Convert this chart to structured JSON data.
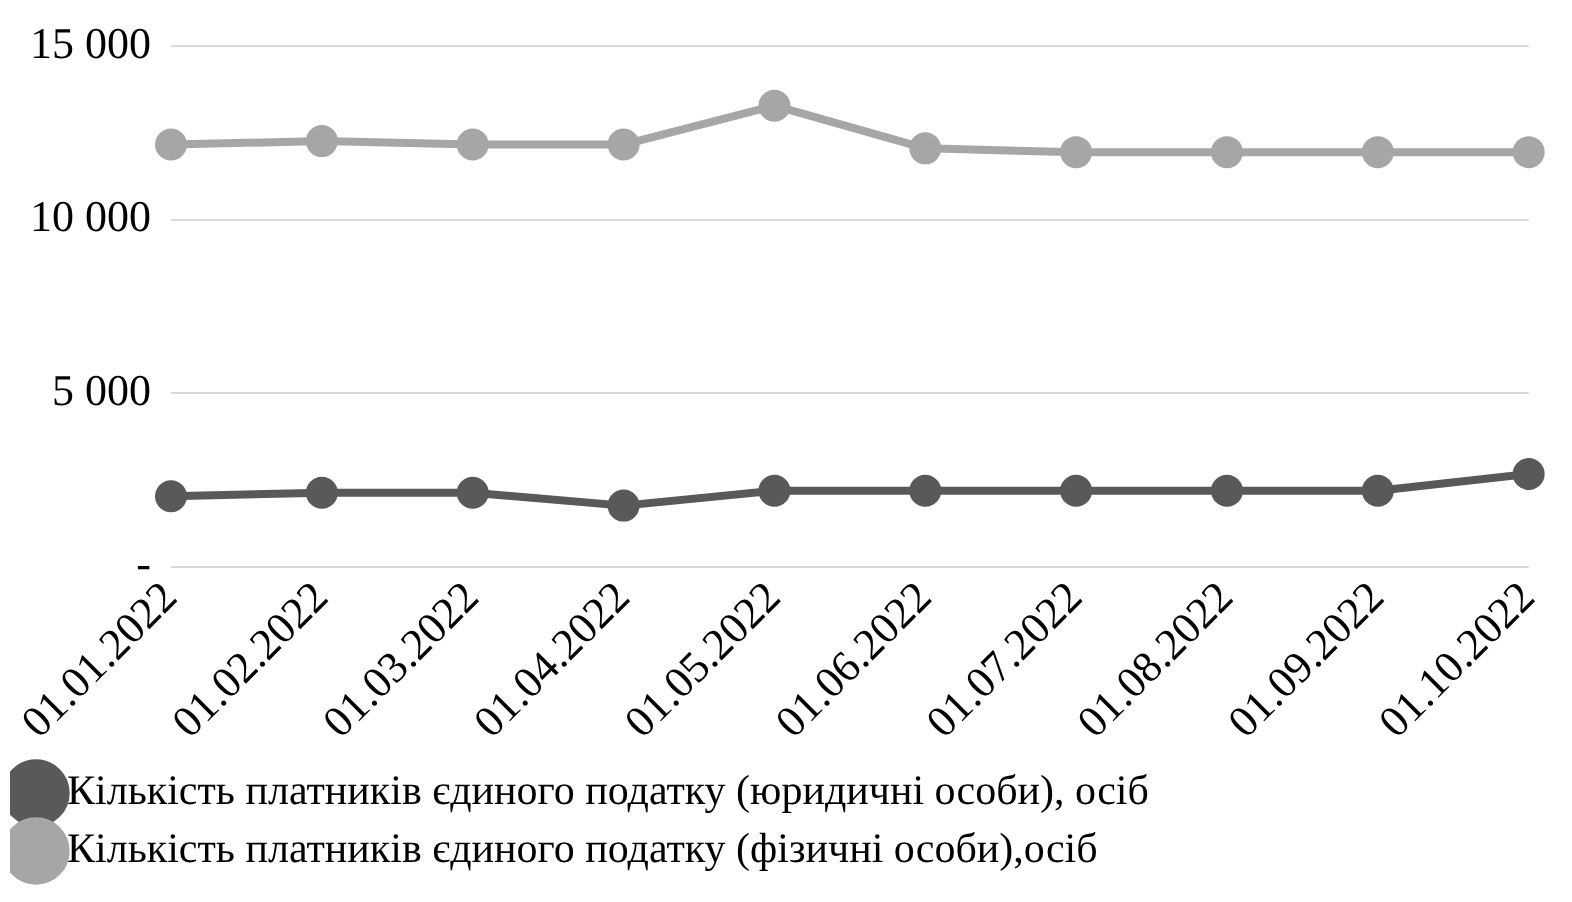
{
  "chart_data": {
    "type": "line",
    "categories": [
      "01.01.2022",
      "01.02.2022",
      "01.03.2022",
      "01.04.2022",
      "01.05.2022",
      "01.06.2022",
      "01.07.2022",
      "01.08.2022",
      "01.09.2022",
      "01.10.2022"
    ],
    "series": [
      {
        "name": "Кількість платників єдиного податку (юридичні особи), осіб",
        "color": "#595959",
        "values": [
          2030,
          2130,
          2130,
          1760,
          2190,
          2190,
          2190,
          2190,
          2190,
          2670
        ]
      },
      {
        "name": "Кількість платників єдиного податку (фізичні особи),осіб",
        "color": "#a6a6a6",
        "values": [
          12170,
          12270,
          12170,
          12170,
          13290,
          12060,
          11950,
          11950,
          11950,
          11950
        ]
      }
    ],
    "ylim": [
      0,
      15000
    ],
    "yticks": [
      {
        "value": 0,
        "label": "-"
      },
      {
        "value": 5000,
        "label": "5 000"
      },
      {
        "value": 10000,
        "label": "10 000"
      },
      {
        "value": 15000,
        "label": "15 000"
      }
    ],
    "grid": "y",
    "legend": "bottom",
    "marker": "circle",
    "line_style": "solid"
  }
}
